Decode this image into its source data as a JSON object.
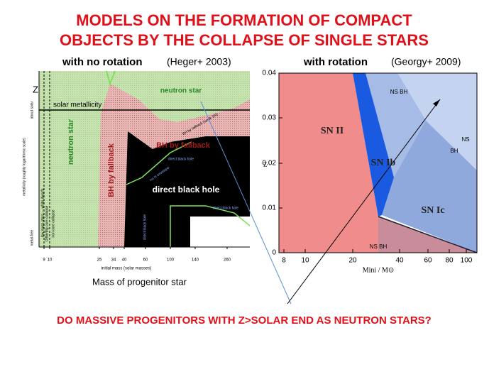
{
  "title": [
    "MODELS ON THE FORMATION OF COMPACT",
    "OBJECTS BY THE COLLAPSE OF SINGLE STARS"
  ],
  "left": {
    "heading": "with no rotation",
    "source": "(Heger+ 2003)",
    "z_label": "Z",
    "y_label": "metallicity (roughly logarithmic scale)",
    "y_ticks": [
      "about solar",
      "metal-free"
    ],
    "regions": {
      "solar_metallicity": "solar metallicity",
      "neutron_star_top": "neutron star",
      "neutron_star_left": "neutron star",
      "bh_fallback_vertical": "BH by fallback",
      "bh_fallback": "BH by fallback",
      "direct_black_hole": "direct black hole",
      "direct_black_hole_small": [
        "direct black hole",
        "direct black hole",
        "direct black hole"
      ],
      "no_h_envelope": "no H envelope",
      "bh_fallback_weak": "BH by fallback (weak SN)",
      "low_mass": "low mass stars — white dwarfs",
      "onemg": "O/Ne/Mg core collapse",
      "iron": "iron core collapse"
    },
    "x_ticks": [
      "9",
      "10",
      "25",
      "34",
      "40",
      "60",
      "100",
      "140",
      "260"
    ],
    "x_label": "initial mass (solar masses)",
    "caption": "Mass of progenitor star"
  },
  "right": {
    "heading": "with rotation",
    "source": "(Georgy+ 2009)",
    "y_label": "Z",
    "y_ticks": [
      "0.04",
      "0.03",
      "0.02",
      "0.01",
      "0"
    ],
    "x_ticks": [
      "8",
      "10",
      "20",
      "40",
      "60",
      "80",
      "100"
    ],
    "x_label": "Mini / M⊙",
    "regions": {
      "sn2": "SN II",
      "sn1b": "SN Ib",
      "sn1c": "SN Ic",
      "ns_bh_top": "NS BH",
      "ns": "NS",
      "bh": "BH",
      "ns_bh_bottom": "NS BH"
    }
  },
  "question": "DO MASSIVE PROGENITORS WITH Z>SOLAR END AS NEUTRON STARS?"
}
